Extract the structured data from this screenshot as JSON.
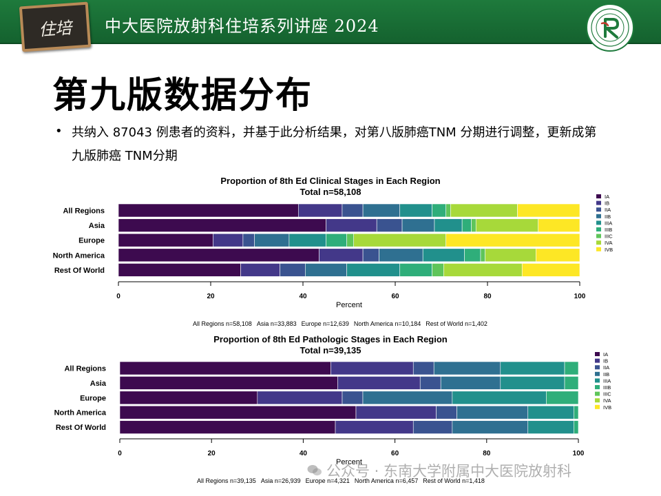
{
  "header": {
    "stamp_text": "住培",
    "title": "中大医院放射科住培系列讲座 2024",
    "logo_icon": "hospital-seal-logo"
  },
  "slide": {
    "title": "第九版数据分布",
    "bullet": "共纳入 87043 例患者的资料，并基于此分析结果，对第八版肺癌TNM 分期进行调整，更新成第九版肺癌 TNM分期"
  },
  "watermark": "公众号 · 东南大学附属中大医院放射科",
  "colors": {
    "IA": "#3d0a4f",
    "IB": "#433889",
    "IIA": "#3a5390",
    "IIB": "#2f7091",
    "IIIA": "#21908c",
    "IIIB": "#2fae7a",
    "IIIC": "#5fc55a",
    "IVA": "#a7d93a",
    "IVB": "#fde725"
  },
  "chart_data": [
    {
      "type": "bar",
      "orientation": "horizontal",
      "stacked": true,
      "title": "Proportion of 8th Ed Clinical Stages in Each Region",
      "subtitle": "Total n=58,108",
      "xlabel": "Percent",
      "xlim": [
        0,
        100
      ],
      "xticks": [
        0,
        20,
        40,
        60,
        80,
        100
      ],
      "legend_position": "right",
      "categories": [
        "All Regions",
        "Asia",
        "Europe",
        "North America",
        "Rest Of World"
      ],
      "series": [
        {
          "name": "IA",
          "values": [
            39,
            45,
            20.5,
            43.5,
            26.5
          ]
        },
        {
          "name": "IB",
          "values": [
            9.5,
            11,
            6.5,
            9.5,
            8.5
          ]
        },
        {
          "name": "IIA",
          "values": [
            4.5,
            5.5,
            2.5,
            3.5,
            5.5
          ]
        },
        {
          "name": "IIB",
          "values": [
            8,
            7,
            7.5,
            9.5,
            9
          ]
        },
        {
          "name": "IIIA",
          "values": [
            7,
            6,
            8,
            9,
            11.5
          ]
        },
        {
          "name": "IIIB",
          "values": [
            3,
            2,
            4.5,
            3.5,
            7
          ]
        },
        {
          "name": "IIIC",
          "values": [
            1,
            1,
            1.5,
            1,
            2.5
          ]
        },
        {
          "name": "IVA",
          "values": [
            14.5,
            13.5,
            20,
            11,
            17
          ]
        },
        {
          "name": "IVB",
          "values": [
            13.5,
            9,
            29,
            9.5,
            12.5
          ]
        }
      ],
      "footnote": [
        "All Regions n=58,108",
        "Asia n=33,883",
        "Europe n=12,639",
        "North America n=10,184",
        "Rest of World n=1,402"
      ]
    },
    {
      "type": "bar",
      "orientation": "horizontal",
      "stacked": true,
      "title": "Proportion of 8th Ed Pathologic Stages in Each Region",
      "subtitle": "Total n=39,135",
      "xlabel": "Percent",
      "xlim": [
        0,
        100
      ],
      "xticks": [
        0,
        20,
        40,
        60,
        80,
        100
      ],
      "legend_position": "right",
      "categories": [
        "All Regions",
        "Asia",
        "Europe",
        "North America",
        "Rest Of World"
      ],
      "series": [
        {
          "name": "IA",
          "values": [
            46,
            47.5,
            30,
            51.5,
            47
          ]
        },
        {
          "name": "IB",
          "values": [
            18,
            18,
            18.5,
            17.5,
            17
          ]
        },
        {
          "name": "IIA",
          "values": [
            4.5,
            4.5,
            4.5,
            4.5,
            8.5
          ]
        },
        {
          "name": "IIB",
          "values": [
            14.5,
            13,
            19.5,
            15.5,
            16.5
          ]
        },
        {
          "name": "IIIA",
          "values": [
            14,
            14,
            20.5,
            10,
            10
          ]
        },
        {
          "name": "IIIB",
          "values": [
            3,
            3,
            7,
            1,
            1
          ]
        },
        {
          "name": "IIIC",
          "values": [
            0,
            0,
            0,
            0,
            0
          ]
        },
        {
          "name": "IVA",
          "values": [
            0,
            0,
            0,
            0,
            0
          ]
        },
        {
          "name": "IVB",
          "values": [
            0,
            0,
            0,
            0,
            0
          ]
        }
      ],
      "footnote": [
        "All Regions n=39,135",
        "Asia n=26,939",
        "Europe n=4,321",
        "North America n=6,457",
        "Rest of World n=1,418"
      ]
    }
  ]
}
